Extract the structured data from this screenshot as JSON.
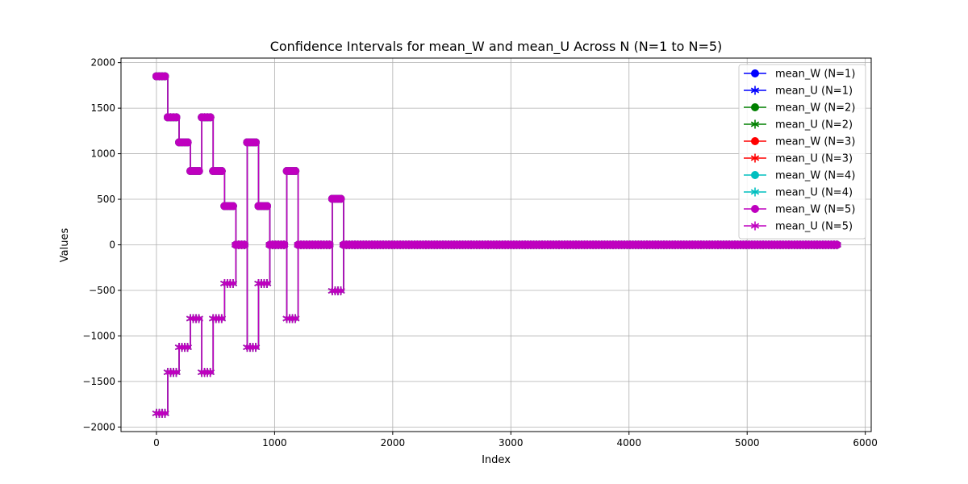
{
  "chart_data": {
    "type": "line",
    "title": "Confidence Intervals for mean_W and mean_U Across N (N=1 to N=5)",
    "xlabel": "Index",
    "ylabel": "Values",
    "xlim": [
      -300,
      6050
    ],
    "ylim": [
      -2050,
      2050
    ],
    "xticks": [
      0,
      1000,
      2000,
      3000,
      4000,
      5000,
      6000
    ],
    "yticks": [
      -2000,
      -1500,
      -1000,
      -500,
      0,
      500,
      1000,
      1500,
      2000
    ],
    "grid": true,
    "legend_position": "top-right",
    "legend": [
      "mean_W (N=1)",
      "mean_U (N=1)",
      "mean_W (N=2)",
      "mean_U (N=2)",
      "mean_W (N=3)",
      "mean_U (N=3)",
      "mean_W (N=4)",
      "mean_U (N=4)",
      "mean_W (N=5)",
      "mean_U (N=5)"
    ],
    "marker_spacing": 24,
    "segments": [
      {
        "x0": 0,
        "x1": 96,
        "w": 1850,
        "u": -1850
      },
      {
        "x0": 96,
        "x1": 192,
        "w": 1400,
        "u": -1400
      },
      {
        "x0": 192,
        "x1": 288,
        "w": 1125,
        "u": -1125
      },
      {
        "x0": 288,
        "x1": 384,
        "w": 810,
        "u": -810
      },
      {
        "x0": 384,
        "x1": 480,
        "w": 1400,
        "u": -1400
      },
      {
        "x0": 480,
        "x1": 576,
        "w": 810,
        "u": -810
      },
      {
        "x0": 576,
        "x1": 672,
        "w": 425,
        "u": -425
      },
      {
        "x0": 672,
        "x1": 768,
        "w": 0,
        "u": 0
      },
      {
        "x0": 768,
        "x1": 864,
        "w": 1125,
        "u": -1125
      },
      {
        "x0": 864,
        "x1": 960,
        "w": 425,
        "u": -425
      },
      {
        "x0": 960,
        "x1": 1104,
        "w": 0,
        "u": 0
      },
      {
        "x0": 1104,
        "x1": 1200,
        "w": 810,
        "u": -810
      },
      {
        "x0": 1200,
        "x1": 1488,
        "w": 0,
        "u": 0
      },
      {
        "x0": 1488,
        "x1": 1584,
        "w": 505,
        "u": -505
      },
      {
        "x0": 1584,
        "x1": 5760,
        "w": 0,
        "u": 0
      }
    ],
    "series": [
      {
        "name": "mean_W (N=1)",
        "color": "#0000ff",
        "marker": "circle",
        "kind": "w"
      },
      {
        "name": "mean_U (N=1)",
        "color": "#0000ff",
        "marker": "asterisk",
        "kind": "u"
      },
      {
        "name": "mean_W (N=2)",
        "color": "#008000",
        "marker": "circle",
        "kind": "w"
      },
      {
        "name": "mean_U (N=2)",
        "color": "#008000",
        "marker": "asterisk",
        "kind": "u"
      },
      {
        "name": "mean_W (N=3)",
        "color": "#ff0000",
        "marker": "circle",
        "kind": "w"
      },
      {
        "name": "mean_U (N=3)",
        "color": "#ff0000",
        "marker": "asterisk",
        "kind": "u"
      },
      {
        "name": "mean_W (N=4)",
        "color": "#00bfbf",
        "marker": "circle",
        "kind": "w"
      },
      {
        "name": "mean_U (N=4)",
        "color": "#00bfbf",
        "marker": "asterisk",
        "kind": "u"
      },
      {
        "name": "mean_W (N=5)",
        "color": "#bf00bf",
        "marker": "circle",
        "kind": "w"
      },
      {
        "name": "mean_U (N=5)",
        "color": "#bf00bf",
        "marker": "asterisk",
        "kind": "u"
      }
    ]
  }
}
